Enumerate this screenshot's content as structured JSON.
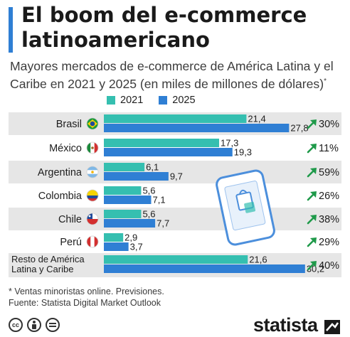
{
  "title": "El boom del e-commerce latinoamericano",
  "subtitle": "Mayores mercados de e-commerce de América Latina y el Caribe en 2021 y 2025 (en miles de millones de dólares)",
  "subtitle_mark": "*",
  "colors": {
    "series_2021": "#35bfb0",
    "series_2025": "#2f7fd4",
    "accent": "#2f7fd4",
    "growth_arrow": "#1f9a4a",
    "row_shade": "#e6e6e6"
  },
  "chart_data": {
    "type": "bar",
    "orientation": "horizontal",
    "categories": [
      "Brasil",
      "México",
      "Argentina",
      "Colombia",
      "Chile",
      "Perú",
      "Resto de América Latina y Caribe"
    ],
    "category_lines": [
      [
        "Brasil"
      ],
      [
        "México"
      ],
      [
        "Argentina"
      ],
      [
        "Colombia"
      ],
      [
        "Chile"
      ],
      [
        "Perú"
      ],
      [
        "Resto de América",
        "Latina y Caribe"
      ]
    ],
    "flag_icons": [
      "flag-brazil-icon",
      "flag-mexico-icon",
      "flag-argentina-icon",
      "flag-colombia-icon",
      "flag-chile-icon",
      "flag-peru-icon",
      ""
    ],
    "series": [
      {
        "name": "2021",
        "values": [
          21.4,
          17.3,
          6.1,
          5.6,
          5.6,
          2.9,
          21.6
        ]
      },
      {
        "name": "2025",
        "values": [
          27.8,
          19.3,
          9.7,
          7.1,
          7.7,
          3.7,
          30.2
        ]
      }
    ],
    "value_labels": [
      [
        "21,4",
        "17,3",
        "6,1",
        "5,6",
        "5,6",
        "2,9",
        "21,6"
      ],
      [
        "27,8",
        "19,3",
        "9,7",
        "7,1",
        "7,7",
        "3,7",
        "30,2"
      ]
    ],
    "growth": [
      "30%",
      "11%",
      "59%",
      "26%",
      "38%",
      "29%",
      "40%"
    ],
    "xlim": [
      0,
      31.5
    ],
    "legend_position": "top",
    "grid": false
  },
  "footnote": "* Ventas minoristas online. Previsiones.",
  "source": "Fuente: Statista Digital Market Outlook",
  "license_icons": [
    "cc-icon",
    "by-icon",
    "nd-icon"
  ],
  "brand": "statista",
  "illustration_icon": "smartphone-shopping-bag-icon"
}
